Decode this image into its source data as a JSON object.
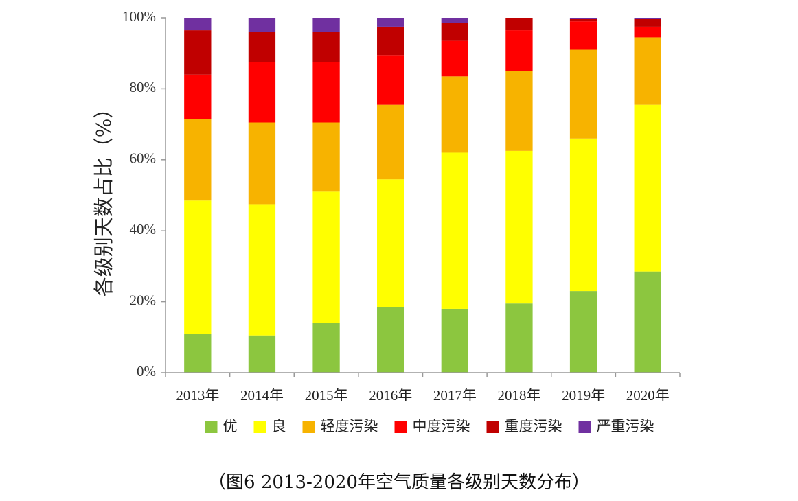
{
  "chart_data": {
    "type": "bar",
    "stacked": true,
    "ylabel": "各级别天数占比（%）",
    "xlabel": "",
    "ylim": [
      0,
      100
    ],
    "yticks": [
      "0%",
      "20%",
      "40%",
      "60%",
      "80%",
      "100%"
    ],
    "categories": [
      "2013年",
      "2014年",
      "2015年",
      "2016年",
      "2017年",
      "2018年",
      "2019年",
      "2020年"
    ],
    "legend_position": "bottom",
    "series": [
      {
        "name": "优",
        "color": "#8CC63F",
        "values": [
          11,
          10.5,
          14,
          18.5,
          18,
          19.5,
          23,
          28.5
        ]
      },
      {
        "name": "良",
        "color": "#FFFF00",
        "values": [
          37.5,
          37,
          37,
          36,
          44,
          43,
          43,
          47
        ]
      },
      {
        "name": "轻度污染",
        "color": "#F7B300",
        "values": [
          23,
          23,
          19.5,
          21,
          21.5,
          22.5,
          25,
          19
        ]
      },
      {
        "name": "中度污染",
        "color": "#FF0000",
        "values": [
          12.5,
          17,
          17,
          14,
          10,
          11.5,
          8,
          3
        ]
      },
      {
        "name": "重度污染",
        "color": "#C00000",
        "values": [
          12.5,
          8.5,
          8.5,
          8,
          5,
          3.5,
          0.8,
          2.2
        ]
      },
      {
        "name": "严重污染",
        "color": "#7030A0",
        "values": [
          3.5,
          4,
          4,
          2.5,
          1.5,
          0,
          0.2,
          0.3
        ]
      }
    ]
  },
  "caption": "（图6 2013-2020年空气质量各级别天数分布）"
}
